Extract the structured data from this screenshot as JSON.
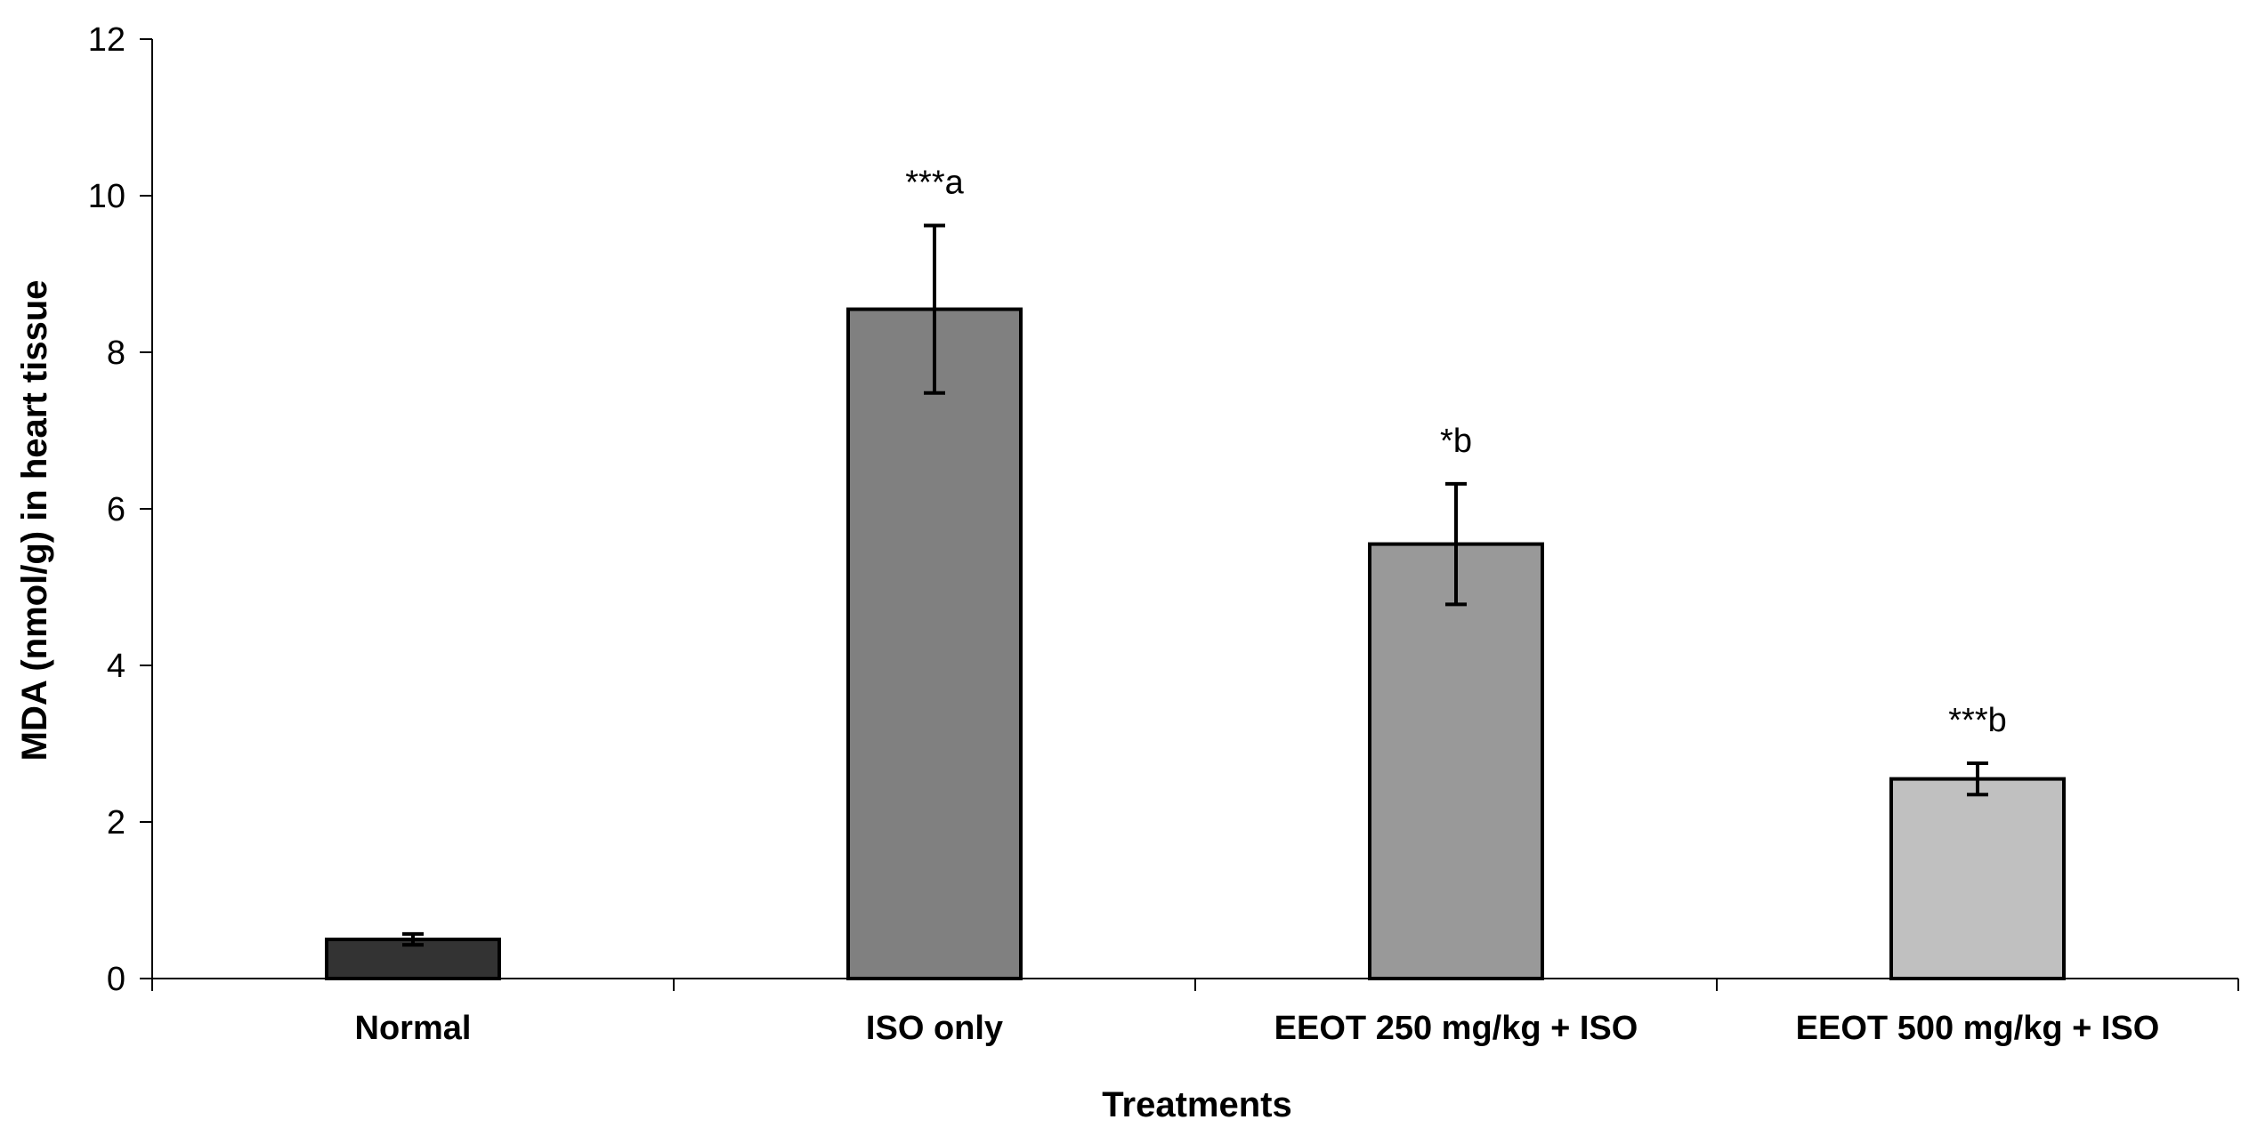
{
  "chart_data": {
    "type": "bar",
    "title": "",
    "xlabel": "Treatments",
    "ylabel": "MDA (nmol/g) in heart tissue",
    "ylim": [
      0,
      12
    ],
    "yticks": [
      0,
      2,
      4,
      6,
      8,
      10,
      12
    ],
    "categories": [
      "Normal",
      "ISO only",
      "EEOT 250 mg/kg + ISO",
      "EEOT 500 mg/kg + ISO"
    ],
    "values": [
      0.5,
      8.55,
      5.55,
      2.55
    ],
    "errors": [
      0.07,
      1.07,
      0.77,
      0.2
    ],
    "annotations": [
      "",
      "***a",
      "*b",
      "***b"
    ],
    "bar_colors": [
      "#333333",
      "#808080",
      "#999999",
      "#c0c0c0"
    ],
    "grid": false,
    "legend": "none"
  }
}
